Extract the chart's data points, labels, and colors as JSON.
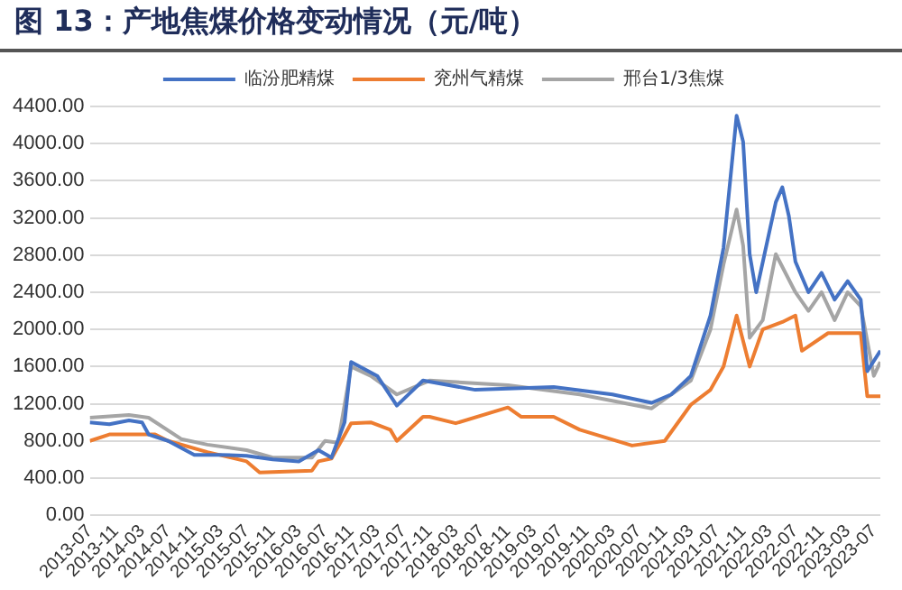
{
  "chart_data": {
    "type": "line",
    "title": "图 13：产地焦煤价格变动情况（元/吨）",
    "series": [
      {
        "name": "临汾肥精煤",
        "color": "#4472c4",
        "x": [
          "2013-07",
          "2013-10",
          "2014-01",
          "2014-03",
          "2014-04",
          "2014-07",
          "2014-11",
          "2015-03",
          "2015-07",
          "2015-11",
          "2016-03",
          "2016-06",
          "2016-08",
          "2016-10",
          "2016-11",
          "2017-03",
          "2017-06",
          "2017-10",
          "2018-06",
          "2019-06",
          "2020-03",
          "2020-09",
          "2020-12",
          "2021-03",
          "2021-06",
          "2021-08",
          "2021-10",
          "2021-11",
          "2021-12",
          "2022-01",
          "2022-04",
          "2022-05",
          "2022-06",
          "2022-07",
          "2022-09",
          "2022-11",
          "2023-01",
          "2023-03",
          "2023-05",
          "2023-06",
          "2023-08"
        ],
        "values": [
          1000,
          980,
          1020,
          1000,
          870,
          800,
          650,
          650,
          640,
          600,
          580,
          700,
          620,
          1000,
          1650,
          1500,
          1180,
          1450,
          1350,
          1380,
          1300,
          1210,
          1300,
          1500,
          2150,
          2880,
          4300,
          4020,
          2810,
          2400,
          3370,
          3530,
          3220,
          2730,
          2400,
          2610,
          2320,
          2520,
          2320,
          1550,
          1770
        ]
      },
      {
        "name": "兖州气精煤",
        "color": "#ed7d31",
        "x": [
          "2013-07",
          "2013-10",
          "2014-05",
          "2014-07",
          "2015-01",
          "2015-07",
          "2015-09",
          "2016-05",
          "2016-06",
          "2016-08",
          "2016-11",
          "2017-02",
          "2017-05",
          "2017-06",
          "2017-10",
          "2017-11",
          "2018-03",
          "2018-11",
          "2019-01",
          "2019-06",
          "2019-10",
          "2020-06",
          "2020-11",
          "2021-03",
          "2021-06",
          "2021-08",
          "2021-10",
          "2021-12",
          "2022-02",
          "2022-05",
          "2022-07",
          "2022-08",
          "2022-12",
          "2023-05",
          "2023-06",
          "2023-08"
        ],
        "values": [
          800,
          870,
          870,
          800,
          680,
          580,
          460,
          480,
          580,
          610,
          990,
          1000,
          920,
          800,
          1060,
          1060,
          990,
          1160,
          1060,
          1060,
          920,
          750,
          800,
          1190,
          1350,
          1600,
          2150,
          1600,
          2000,
          2080,
          2150,
          1770,
          1960,
          1960,
          1280,
          1280
        ]
      },
      {
        "name": "邢台1/3焦煤",
        "color": "#a5a5a5",
        "x": [
          "2013-07",
          "2014-01",
          "2014-04",
          "2014-09",
          "2015-01",
          "2015-07",
          "2015-11",
          "2016-05",
          "2016-07",
          "2016-09",
          "2016-11",
          "2017-02",
          "2017-06",
          "2017-11",
          "2018-11",
          "2019-10",
          "2020-09",
          "2021-03",
          "2021-06",
          "2021-08",
          "2021-10",
          "2021-11",
          "2021-12",
          "2022-02",
          "2022-04",
          "2022-07",
          "2022-09",
          "2022-11",
          "2023-01",
          "2023-03",
          "2023-05",
          "2023-07",
          "2023-08"
        ],
        "values": [
          1050,
          1080,
          1050,
          820,
          760,
          700,
          620,
          620,
          800,
          780,
          1600,
          1500,
          1300,
          1450,
          1400,
          1300,
          1150,
          1450,
          2000,
          2700,
          3290,
          2900,
          1910,
          2100,
          2810,
          2400,
          2200,
          2400,
          2100,
          2400,
          2250,
          1500,
          1650
        ]
      }
    ],
    "xlim": [
      "2013-07",
      "2023-08"
    ],
    "xticks": [
      "2013-07",
      "2013-11",
      "2014-03",
      "2014-07",
      "2014-11",
      "2015-03",
      "2015-07",
      "2015-11",
      "2016-03",
      "2016-07",
      "2016-11",
      "2017-03",
      "2017-07",
      "2017-11",
      "2018-03",
      "2018-07",
      "2018-11",
      "2019-03",
      "2019-07",
      "2019-11",
      "2020-03",
      "2020-07",
      "2020-11",
      "2021-03",
      "2021-07",
      "2021-11",
      "2022-03",
      "2022-07",
      "2022-11",
      "2023-03",
      "2023-07"
    ],
    "ylim": [
      0,
      4400
    ],
    "yticks": [
      {
        "value": 0,
        "label": "0.00"
      },
      {
        "value": 400,
        "label": "400.00"
      },
      {
        "value": 800,
        "label": "800.00"
      },
      {
        "value": 1200,
        "label": "1200.00"
      },
      {
        "value": 1600,
        "label": "1600.00"
      },
      {
        "value": 2000,
        "label": "2000.00"
      },
      {
        "value": 2400,
        "label": "2400.00"
      },
      {
        "value": 2800,
        "label": "2800.00"
      },
      {
        "value": 3200,
        "label": "3200.00"
      },
      {
        "value": 3600,
        "label": "3600.00"
      },
      {
        "value": 4000,
        "label": "4000.00"
      },
      {
        "value": 4400,
        "label": "4400.00"
      }
    ],
    "grid": "y",
    "legend": "top",
    "marker": "none",
    "line_style": "solid"
  }
}
